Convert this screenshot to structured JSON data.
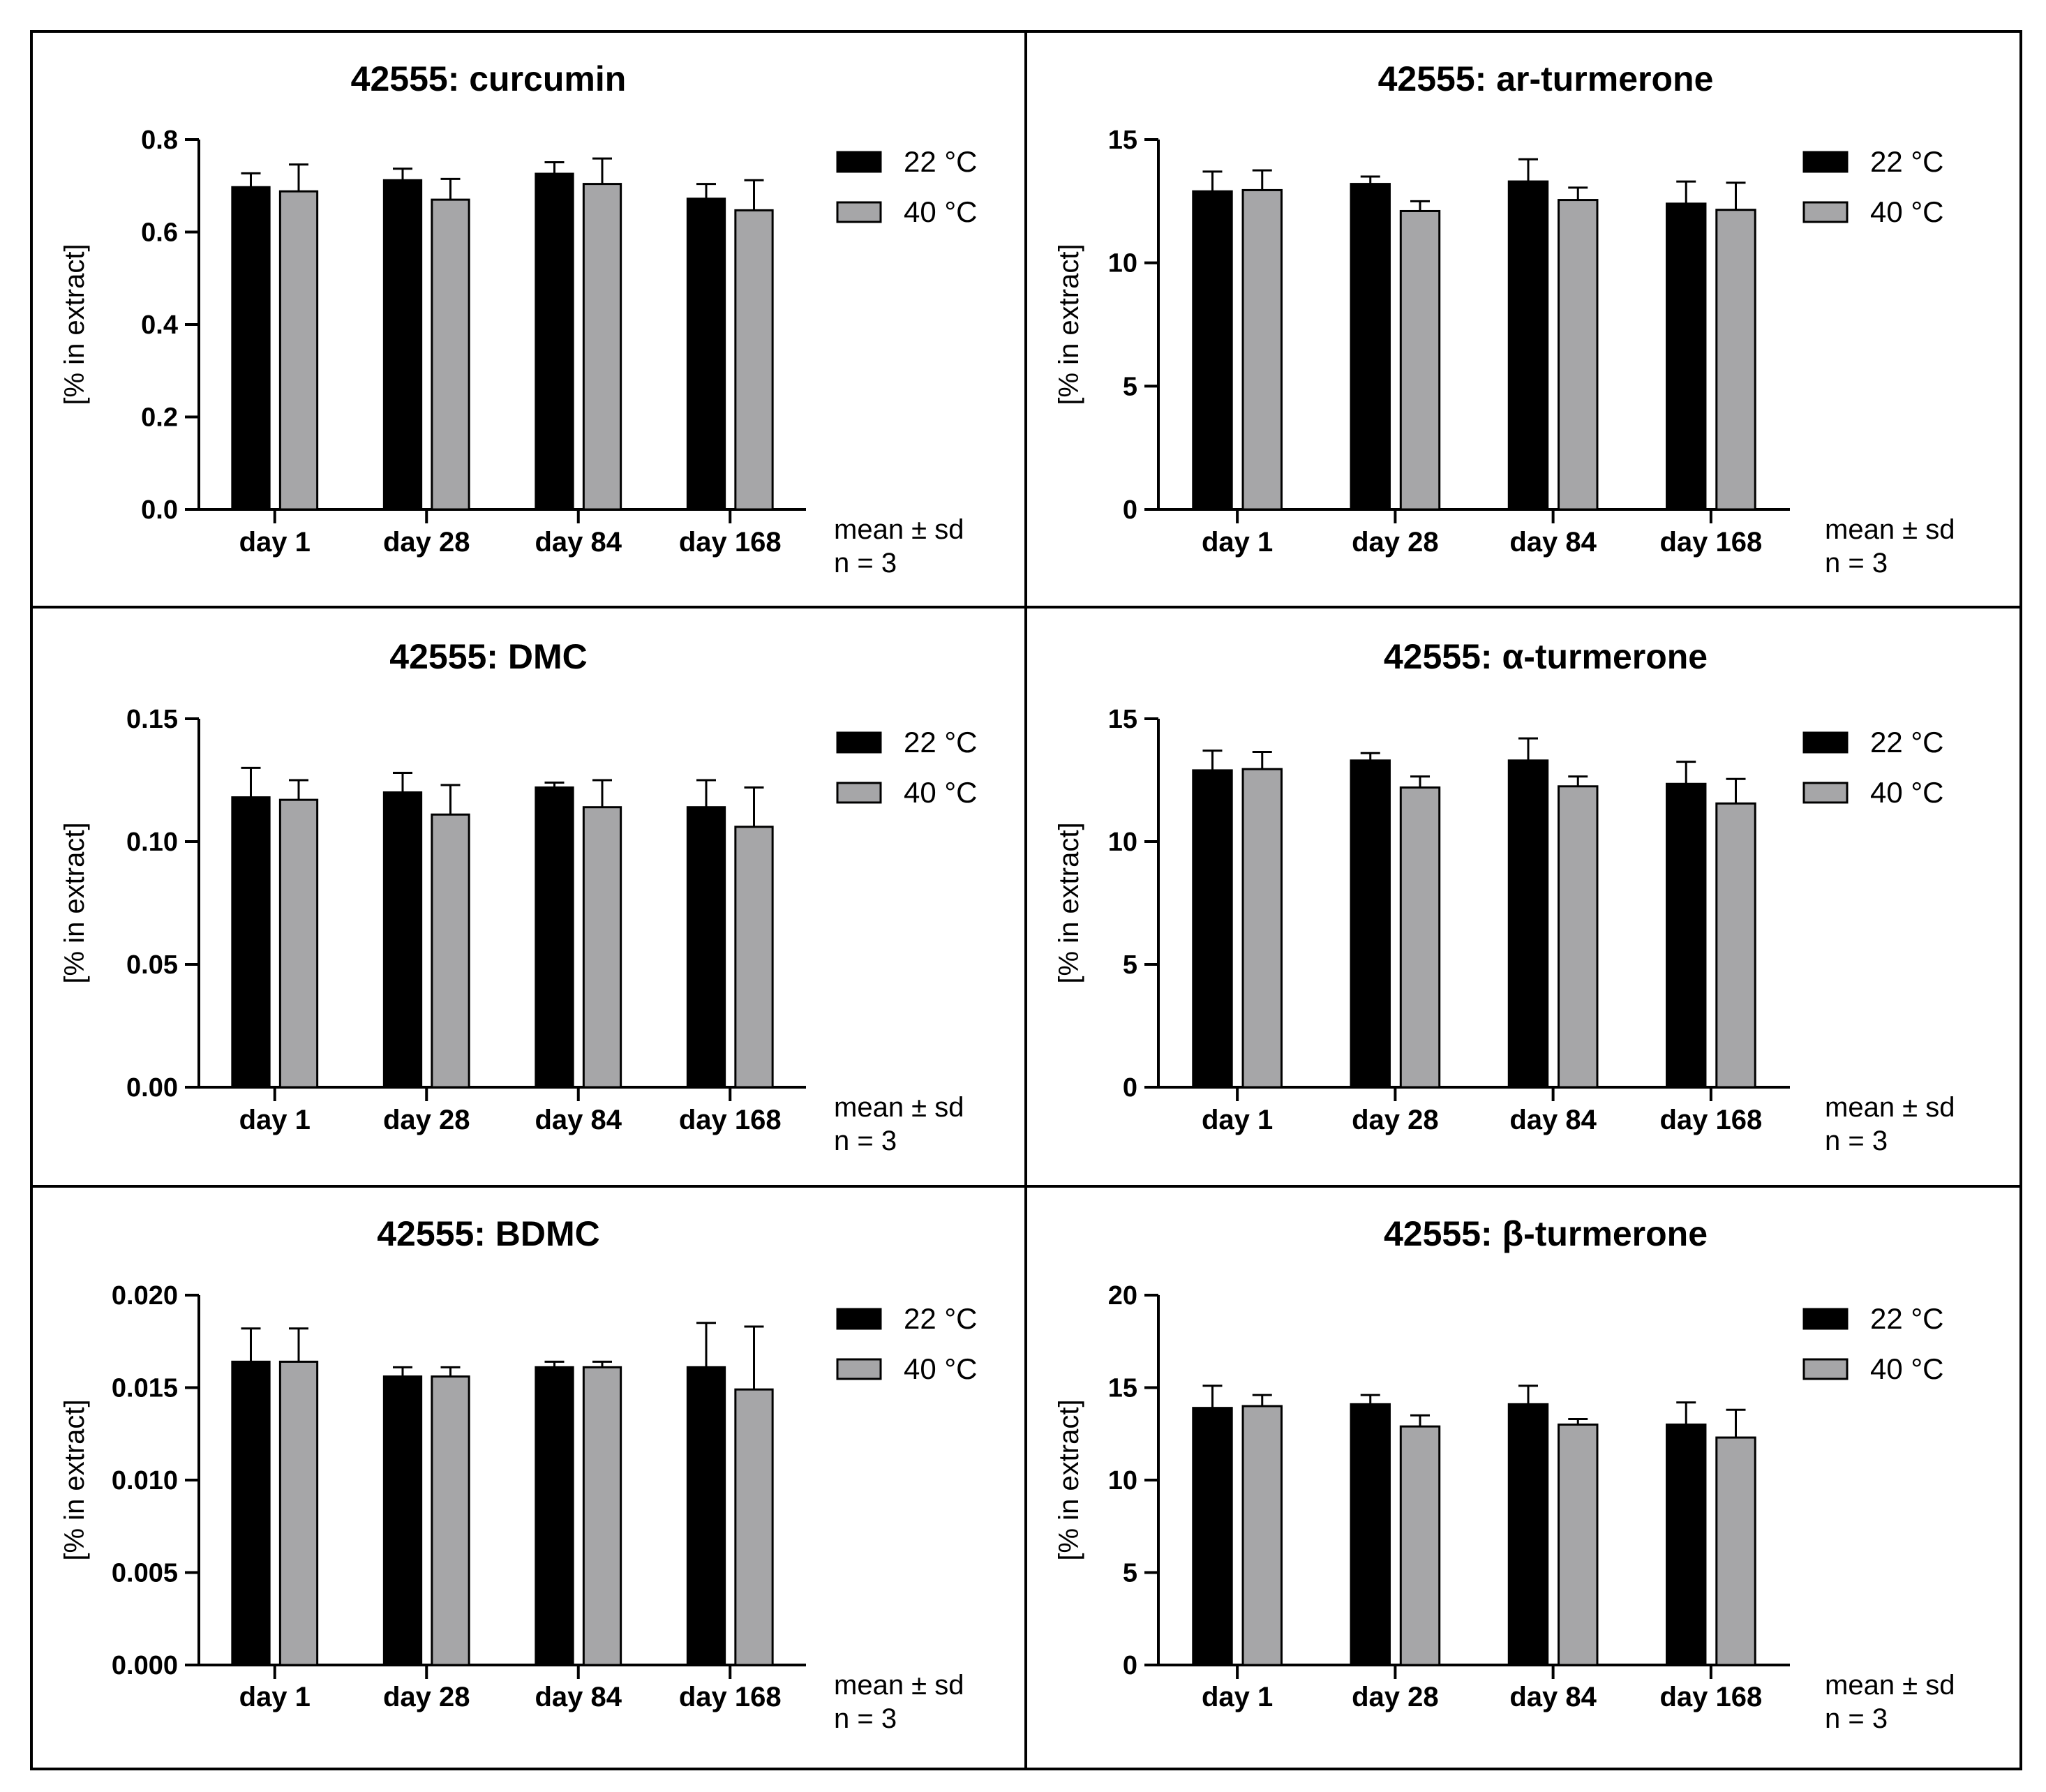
{
  "figure": {
    "legend": {
      "labels": [
        "22 °C",
        "40 °C"
      ],
      "colors": [
        "#000000",
        "#a6a6a8"
      ]
    },
    "footnote": {
      "line1": "mean ± sd",
      "line2": "n = 3"
    },
    "categories": [
      "day 1",
      "day 28",
      "day 84",
      "day 168"
    ]
  },
  "chart_data": [
    {
      "type": "bar",
      "title": "42555: curcumin",
      "ylabel": "[% in extract]",
      "xlabel": "",
      "categories": [
        "day 1",
        "day 28",
        "day 84",
        "day 168"
      ],
      "ylim": [
        0,
        0.8
      ],
      "ticks": [
        "0.0",
        "0.2",
        "0.4",
        "0.6",
        "0.8"
      ],
      "series": [
        {
          "name": "22 °C",
          "values": [
            0.697,
            0.712,
            0.726,
            0.672
          ],
          "sd": [
            0.03,
            0.025,
            0.025,
            0.032
          ]
        },
        {
          "name": "40 °C",
          "values": [
            0.688,
            0.67,
            0.704,
            0.647
          ],
          "sd": [
            0.058,
            0.045,
            0.055,
            0.065
          ]
        }
      ]
    },
    {
      "type": "bar",
      "title": "42555: ar-turmerone",
      "ylabel": "[% in extract]",
      "xlabel": "",
      "categories": [
        "day 1",
        "day 28",
        "day 84",
        "day 168"
      ],
      "ylim": [
        0,
        15
      ],
      "ticks": [
        "0",
        "5",
        "10",
        "15"
      ],
      "series": [
        {
          "name": "22 °C",
          "values": [
            12.9,
            13.2,
            13.3,
            12.4
          ],
          "sd": [
            0.8,
            0.3,
            0.9,
            0.9
          ]
        },
        {
          "name": "40 °C",
          "values": [
            12.95,
            12.1,
            12.55,
            12.15
          ],
          "sd": [
            0.8,
            0.4,
            0.5,
            1.1
          ]
        }
      ]
    },
    {
      "type": "bar",
      "title": "42555: DMC",
      "ylabel": "[% in extract]",
      "xlabel": "",
      "categories": [
        "day 1",
        "day 28",
        "day 84",
        "day 168"
      ],
      "ylim": [
        0,
        0.15
      ],
      "ticks": [
        "0.00",
        "0.05",
        "0.10",
        "0.15"
      ],
      "series": [
        {
          "name": "22 °C",
          "values": [
            0.118,
            0.12,
            0.122,
            0.114
          ],
          "sd": [
            0.012,
            0.008,
            0.002,
            0.011
          ]
        },
        {
          "name": "40 °C",
          "values": [
            0.117,
            0.111,
            0.114,
            0.106
          ],
          "sd": [
            0.008,
            0.012,
            0.011,
            0.016
          ]
        }
      ]
    },
    {
      "type": "bar",
      "title": "42555: α-turmerone",
      "ylabel": "[% in extract]",
      "xlabel": "",
      "categories": [
        "day 1",
        "day 28",
        "day 84",
        "day 168"
      ],
      "ylim": [
        0,
        15
      ],
      "ticks": [
        "0",
        "5",
        "10",
        "15"
      ],
      "series": [
        {
          "name": "22 °C",
          "values": [
            12.9,
            13.3,
            13.3,
            12.35
          ],
          "sd": [
            0.8,
            0.3,
            0.9,
            0.9
          ]
        },
        {
          "name": "40 °C",
          "values": [
            12.95,
            12.2,
            12.25,
            11.55
          ],
          "sd": [
            0.7,
            0.45,
            0.4,
            1.0
          ]
        }
      ]
    },
    {
      "type": "bar",
      "title": "42555: BDMC",
      "ylabel": "[% in extract]",
      "xlabel": "",
      "categories": [
        "day 1",
        "day 28",
        "day 84",
        "day 168"
      ],
      "ylim": [
        0,
        0.02
      ],
      "ticks": [
        "0.000",
        "0.005",
        "0.010",
        "0.015",
        "0.020"
      ],
      "series": [
        {
          "name": "22 °C",
          "values": [
            0.0164,
            0.0156,
            0.0161,
            0.0161
          ],
          "sd": [
            0.0018,
            0.0005,
            0.0003,
            0.0024
          ]
        },
        {
          "name": "40 °C",
          "values": [
            0.0164,
            0.0156,
            0.0161,
            0.0149
          ],
          "sd": [
            0.0018,
            0.0005,
            0.0003,
            0.0034
          ]
        }
      ]
    },
    {
      "type": "bar",
      "title": "42555: β-turmerone",
      "ylabel": "[% in extract]",
      "xlabel": "",
      "categories": [
        "day 1",
        "day 28",
        "day 84",
        "day 168"
      ],
      "ylim": [
        0,
        20
      ],
      "ticks": [
        "0",
        "5",
        "10",
        "15",
        "20"
      ],
      "series": [
        {
          "name": "22 °C",
          "values": [
            13.9,
            14.1,
            14.1,
            13.0
          ],
          "sd": [
            1.2,
            0.5,
            1.0,
            1.2
          ]
        },
        {
          "name": "40 °C",
          "values": [
            14.0,
            12.9,
            13.0,
            12.3
          ],
          "sd": [
            0.6,
            0.6,
            0.3,
            1.5
          ]
        }
      ]
    }
  ]
}
